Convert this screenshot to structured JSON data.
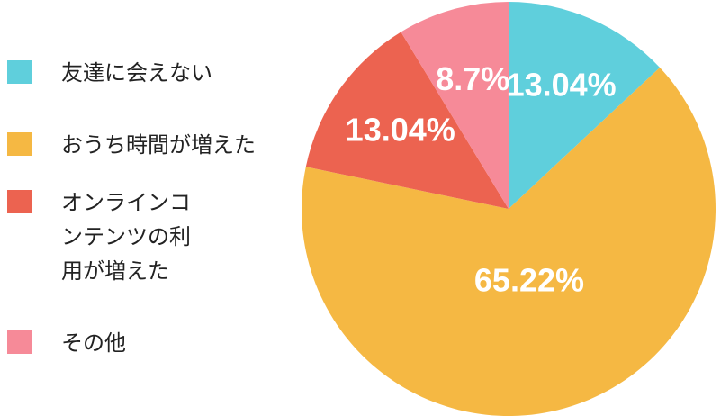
{
  "chart_data": {
    "type": "pie",
    "categories": [
      "友達に会えない",
      "おうち時間が増えた",
      "オンラインコンテンツの利用が増えた",
      "その他"
    ],
    "values": [
      13.04,
      65.22,
      13.04,
      8.7
    ],
    "value_labels": [
      "13.04%",
      "65.22%",
      "13.04%",
      "8.7%"
    ],
    "colors": [
      "#5fcfdc",
      "#f5b843",
      "#ec6350",
      "#f68a98"
    ],
    "legend": "left"
  }
}
